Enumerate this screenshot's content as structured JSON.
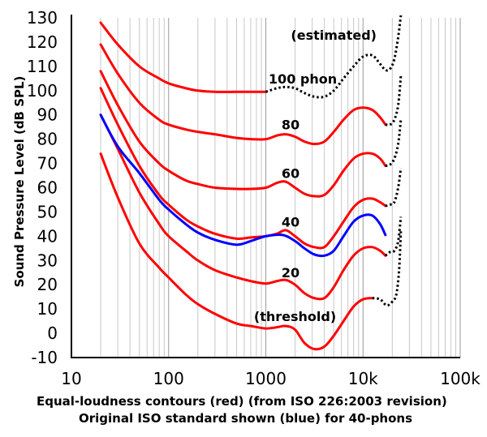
{
  "chart_data": {
    "type": "line",
    "title": "",
    "xlabel_lines": [
      "Equal-loudness contours (red) (from ISO 226:2003 revision)",
      "Original ISO standard shown (blue) for 40-phons"
    ],
    "ylabel": "Sound Pressure Level (dB SPL)",
    "xscale": "log",
    "xlim": [
      10,
      100000
    ],
    "ylim": [
      -10,
      130
    ],
    "grid": true,
    "x_ticks": [
      10,
      100,
      1000,
      10000,
      100000
    ],
    "x_tick_labels": [
      "10",
      "100",
      "1000",
      "10k",
      "100k"
    ],
    "y_ticks": [
      130,
      120,
      110,
      100,
      90,
      80,
      70,
      60,
      50,
      40,
      30,
      20,
      10,
      0,
      -10
    ],
    "y_tick_labels": [
      "130",
      "120",
      "110",
      "100",
      "90",
      "80",
      "70",
      "60",
      "50",
      "40",
      "30",
      "20",
      "10",
      "0",
      "-10"
    ],
    "annotations": [
      {
        "text": "(estimated)",
        "x": 5000,
        "y": 121
      },
      {
        "text": "100 phon",
        "x": 2400,
        "y": 103
      },
      {
        "text": "80",
        "x": 1800,
        "y": 84
      },
      {
        "text": "60",
        "x": 1800,
        "y": 64
      },
      {
        "text": "40",
        "x": 1800,
        "y": 44
      },
      {
        "text": "20",
        "x": 1800,
        "y": 23
      },
      {
        "text": "(threshold)",
        "x": 2000,
        "y": 5
      }
    ],
    "colors": {
      "iso2003": "#ff0000",
      "original": "#0000ff",
      "estimated": "#000000"
    },
    "series": [
      {
        "phon": "threshold",
        "color": "#ff0000",
        "style": "solid",
        "x": [
          20,
          30,
          50,
          80,
          100,
          150,
          200,
          300,
          500,
          700,
          1000,
          1300,
          1600,
          2000,
          2500,
          3150,
          4000,
          5000,
          6300,
          8000,
          10000,
          12500
        ],
        "y": [
          74,
          56,
          37,
          27,
          23,
          16,
          12,
          8,
          4,
          3,
          2,
          2.5,
          3,
          1.5,
          -4,
          -6.5,
          -5.5,
          -1,
          5,
          11,
          14,
          14.5
        ]
      },
      {
        "phon": "threshold",
        "color": "#000000",
        "style": "dotted",
        "x": [
          12500,
          15000,
          17500,
          20000,
          22000,
          23500,
          24500
        ],
        "y": [
          14.5,
          14,
          11.5,
          13,
          16,
          26,
          42
        ]
      },
      {
        "phon": 20,
        "color": "#ff0000",
        "style": "solid",
        "x": [
          20,
          30,
          50,
          80,
          100,
          150,
          200,
          300,
          500,
          700,
          1000,
          1300,
          1600,
          2000,
          2500,
          3150,
          4000,
          5000,
          6300,
          8000,
          10000,
          12500,
          15000,
          17000
        ],
        "y": [
          90,
          76,
          58,
          45,
          40,
          34,
          30,
          26,
          23,
          21.5,
          20.5,
          21.5,
          22,
          20,
          16.5,
          14.5,
          14.5,
          19,
          26,
          32,
          35,
          35.5,
          34,
          32
        ]
      },
      {
        "phon": 20,
        "color": "#000000",
        "style": "dotted",
        "x": [
          17000,
          19000,
          21000,
          23000,
          24500
        ],
        "y": [
          32,
          33.5,
          34,
          38,
          48
        ]
      },
      {
        "phon": 40,
        "color": "#ff0000",
        "style": "solid",
        "x": [
          20,
          30,
          50,
          80,
          100,
          150,
          200,
          300,
          500,
          700,
          1000,
          1300,
          1600,
          2000,
          2500,
          3150,
          4000,
          5000,
          6300,
          8000,
          10000,
          12500,
          15000,
          17000
        ],
        "y": [
          101,
          86,
          69,
          57,
          53,
          47,
          44,
          41,
          39,
          39.5,
          40,
          41,
          42.5,
          40,
          37,
          35.5,
          35.5,
          40,
          46,
          52,
          55,
          55.5,
          54,
          52.5
        ]
      },
      {
        "phon": 40,
        "color": "#000000",
        "style": "dotted",
        "x": [
          17000,
          19000,
          21000,
          23000,
          24500
        ],
        "y": [
          52.5,
          53,
          54,
          60,
          68
        ]
      },
      {
        "phon": 60,
        "color": "#ff0000",
        "style": "solid",
        "x": [
          20,
          30,
          50,
          80,
          100,
          150,
          200,
          300,
          500,
          700,
          1000,
          1300,
          1600,
          2000,
          2500,
          3150,
          4000,
          5000,
          6300,
          8000,
          10000,
          12500,
          15000,
          17000
        ],
        "y": [
          108,
          94,
          79,
          70,
          67,
          63,
          61.5,
          60,
          59.5,
          59.5,
          60,
          62,
          62.5,
          60,
          57.5,
          56.5,
          57,
          61,
          67,
          72,
          74,
          74,
          72,
          69
        ]
      },
      {
        "phon": 60,
        "color": "#000000",
        "style": "dotted",
        "x": [
          17000,
          19000,
          21000,
          23000,
          24500
        ],
        "y": [
          69,
          69.5,
          72,
          78,
          88
        ]
      },
      {
        "phon": 80,
        "color": "#ff0000",
        "style": "solid",
        "x": [
          20,
          30,
          50,
          80,
          100,
          150,
          200,
          300,
          500,
          700,
          1000,
          1300,
          1600,
          2000,
          2500,
          3150,
          4000,
          5000,
          6300,
          8000,
          10000,
          12500,
          15000,
          17000
        ],
        "y": [
          119,
          107,
          95,
          88,
          86,
          84,
          83,
          82,
          80.5,
          80,
          80,
          81.5,
          82,
          81,
          79,
          78,
          79,
          83,
          88,
          92,
          93,
          92,
          89,
          86
        ]
      },
      {
        "phon": 80,
        "color": "#000000",
        "style": "dotted",
        "x": [
          17000,
          19000,
          21000,
          23000,
          24500
        ],
        "y": [
          86,
          86,
          88,
          94,
          106
        ]
      },
      {
        "phon": 100,
        "color": "#ff0000",
        "style": "solid",
        "x": [
          20,
          30,
          50,
          80,
          100,
          150,
          200,
          300,
          500,
          700,
          1000
        ],
        "y": [
          128,
          119,
          110,
          105,
          103,
          101,
          100,
          99.5,
          99.5,
          99.5,
          99.5
        ]
      },
      {
        "phon": 100,
        "color": "#000000",
        "style": "dotted",
        "x": [
          1000,
          1300,
          1600,
          2000,
          2500,
          3150,
          4000,
          5000,
          6300,
          8000,
          10000,
          12500,
          15000,
          17000,
          19000,
          21000,
          23000,
          24000,
          24500
        ],
        "y": [
          99.5,
          101,
          101.5,
          101,
          99,
          97.5,
          97.5,
          100,
          105,
          110,
          114,
          114.5,
          111,
          108.5,
          109,
          113,
          122,
          128,
          131
        ]
      },
      {
        "phon": "40 (original ISO)",
        "color": "#0000ff",
        "style": "solid",
        "x": [
          20,
          30,
          50,
          80,
          100,
          150,
          200,
          300,
          500,
          700,
          1000,
          1500,
          2000,
          2500,
          3150,
          4000,
          5000,
          6300,
          8000,
          10000,
          12500,
          15000,
          17000
        ],
        "y": [
          90,
          77,
          66,
          55,
          51,
          45,
          41.5,
          38.5,
          36.5,
          38,
          40,
          40.5,
          38,
          35,
          32.5,
          32,
          34,
          40,
          46,
          48.5,
          48.5,
          45,
          40.5
        ]
      }
    ]
  }
}
